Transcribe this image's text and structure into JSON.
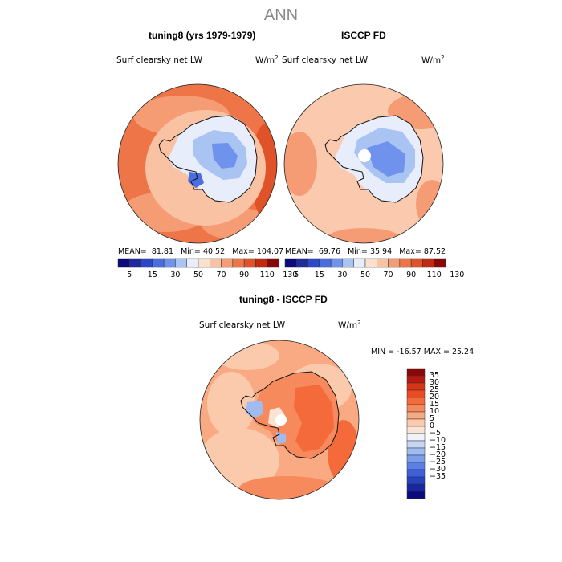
{
  "title": "ANN",
  "panels": [
    {
      "title": "tuning8 (yrs 1979-1979)",
      "variable": "Surf clearsky net LW",
      "units": "W/m",
      "units_sup": "2",
      "stats": {
        "mean_label": "MEAN=",
        "mean": "81.81",
        "min_label": "Min=",
        "min": "40.52",
        "max_label": "Max=",
        "max": "104.07"
      }
    },
    {
      "title": "ISCCP FD",
      "variable": "Surf clearsky net LW",
      "units": "W/m",
      "units_sup": "2",
      "stats": {
        "mean_label": "MEAN=",
        "mean": "69.76",
        "min_label": "Min=",
        "min": "35.94",
        "max_label": "Max=",
        "max": "87.52"
      }
    },
    {
      "title": "tuning8 - ISCCP FD",
      "variable": "Surf clearsky net LW",
      "units": "W/m",
      "units_sup": "2",
      "stats": {
        "text": "MIN = -16.57 MAX =  25.24"
      }
    }
  ],
  "colorbar_top": {
    "colors": [
      "#0a0a7a",
      "#1e2a9e",
      "#2c47c8",
      "#4a6ee0",
      "#6f93ec",
      "#a9c3f3",
      "#e7edfa",
      "#fbe0cd",
      "#f9c2a3",
      "#f59c75",
      "#ee7547",
      "#e05228",
      "#c02a12",
      "#8a0707"
    ],
    "labels": [
      "5",
      "15",
      "30",
      "50",
      "70",
      "90",
      "110",
      "130"
    ]
  },
  "colorbar_diff": {
    "colors": [
      "#8a0707",
      "#b71910",
      "#d73515",
      "#ee4a22",
      "#f46a3a",
      "#f78a5c",
      "#f9aa82",
      "#fbcaad",
      "#fbe3d3",
      "#eef2fb",
      "#c7d6f5",
      "#a1bbf0",
      "#7b9deb",
      "#5a80e6",
      "#3b60d9",
      "#2442c2",
      "#1727a0",
      "#0a0a7a"
    ],
    "labels": [
      "35",
      "30",
      "25",
      "20",
      "15",
      "10",
      "5",
      "0",
      "−5",
      "−10",
      "−15",
      "−20",
      "−25",
      "−30",
      "−35"
    ]
  },
  "colors": {
    "coast": "#111111",
    "land_low": "#e4ecfa",
    "ocean_warm": "#f28a5e",
    "ocean_pale": "#fbc9ad"
  }
}
